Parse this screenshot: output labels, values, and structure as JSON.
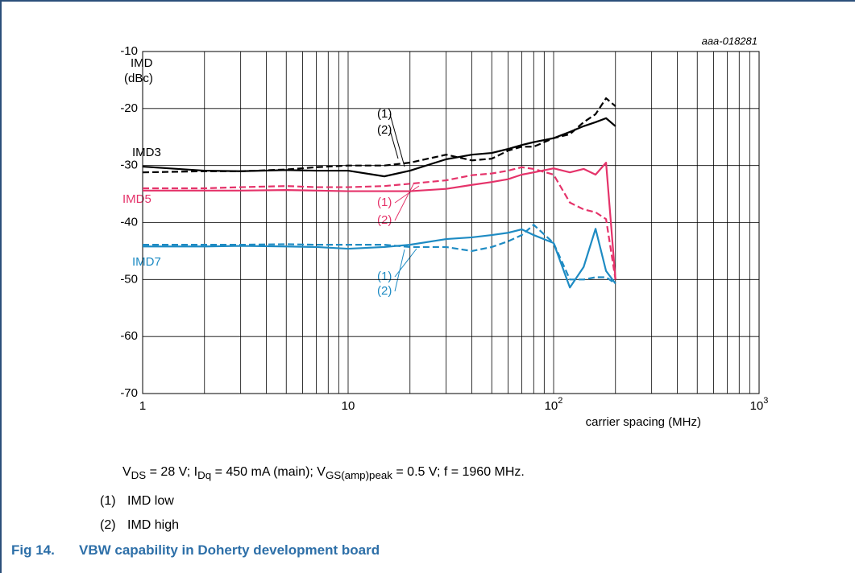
{
  "chart_data": {
    "type": "line",
    "code": "aaa-018281",
    "ylabel": [
      "IMD",
      "(dBc)"
    ],
    "xlabel": "carrier spacing (MHz)",
    "xlog": true,
    "grid": true,
    "xlim": [
      1,
      1000
    ],
    "ylim": [
      -70,
      -10
    ],
    "xticks": [
      {
        "value": 1,
        "label": "1"
      },
      {
        "value": 10,
        "label": "10"
      },
      {
        "value": 100,
        "label": "10",
        "sup": "2"
      },
      {
        "value": 1000,
        "label": "10",
        "sup": "3"
      }
    ],
    "xminor": [
      2,
      3,
      4,
      5,
      6,
      7,
      8,
      9,
      20,
      30,
      40,
      50,
      60,
      70,
      80,
      90,
      200,
      300,
      400,
      500,
      600,
      700,
      800,
      900
    ],
    "yticks": [
      -10,
      -20,
      -30,
      -40,
      -50,
      -60,
      -70
    ],
    "x": [
      1,
      2,
      3,
      5,
      7,
      10,
      15,
      20,
      30,
      40,
      50,
      60,
      70,
      80,
      100,
      120,
      140,
      160,
      180,
      200
    ],
    "groups": [
      {
        "name": "IMD3",
        "color": "#000000",
        "series": [
          {
            "label": "(1)",
            "dash": false,
            "values": [
              -30.2,
              -30.9,
              -31,
              -30.8,
              -30.9,
              -30.9,
              -31.9,
              -30.9,
              -28.9,
              -28.1,
              -27.8,
              -27.1,
              -26.4,
              -25.9,
              -25.2,
              -24.1,
              -23.1,
              -22.4,
              -21.7,
              -23.1
            ]
          },
          {
            "label": "(2)",
            "dash": true,
            "values": [
              -31.2,
              -31,
              -31,
              -30.7,
              -30.3,
              -30,
              -30,
              -29.5,
              -28.1,
              -29.1,
              -28.8,
              -27.4,
              -26.7,
              -26.7,
              -25.2,
              -24.5,
              -22.4,
              -21,
              -18.2,
              -19.6
            ]
          }
        ]
      },
      {
        "name": "IMD5",
        "color": "#e5336a",
        "series": [
          {
            "label": "(1)",
            "dash": false,
            "values": [
              -34.4,
              -34.4,
              -34.4,
              -34.3,
              -34.4,
              -34.5,
              -34.5,
              -34.5,
              -34.1,
              -33.4,
              -32.9,
              -32.4,
              -31.6,
              -31.2,
              -30.5,
              -31.2,
              -30.6,
              -31.6,
              -29.5,
              -50
            ]
          },
          {
            "label": "(2)",
            "dash": true,
            "values": [
              -34,
              -34,
              -33.8,
              -33.6,
              -33.8,
              -33.8,
              -33.6,
              -33.2,
              -32.6,
              -31.7,
              -31.4,
              -30.9,
              -30.3,
              -30.6,
              -31.6,
              -36.5,
              -37.7,
              -38.2,
              -39.4,
              -50
            ]
          }
        ]
      },
      {
        "name": "IMD7",
        "color": "#1e8bc3",
        "series": [
          {
            "label": "(1)",
            "dash": false,
            "values": [
              -44.2,
              -44.2,
              -44.1,
              -44.2,
              -44.3,
              -44.6,
              -44.3,
              -43.9,
              -42.9,
              -42.6,
              -42.2,
              -41.8,
              -41.2,
              -42.2,
              -43.6,
              -51.4,
              -47.8,
              -41.1,
              -48.5,
              -50.7
            ]
          },
          {
            "label": "(2)",
            "dash": true,
            "values": [
              -43.9,
              -43.9,
              -43.9,
              -43.8,
              -43.9,
              -43.9,
              -43.9,
              -44.3,
              -44.3,
              -45,
              -44.3,
              -43.3,
              -42.2,
              -40.4,
              -43.6,
              -50,
              -50,
              -49.6,
              -49.6,
              -50.7
            ]
          }
        ]
      }
    ]
  },
  "conditions": [
    "V",
    "DS",
    " = 28 V; I",
    "Dq",
    " = 450 mA (main); V",
    "GS(amp)peak",
    " = 0.5 V; f = 1960 MHz."
  ],
  "notes": [
    {
      "num": "(1)",
      "text": "IMD low"
    },
    {
      "num": "(2)",
      "text": "IMD high"
    }
  ],
  "caption": {
    "number": "Fig 14.",
    "title": "VBW capability in Doherty development board"
  }
}
